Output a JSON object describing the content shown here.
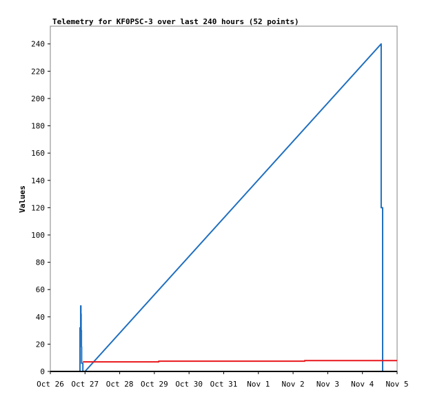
{
  "chart_data": {
    "type": "line",
    "title": "Telemetry for KF0PSC-3 over last 240 hours (52 points)",
    "xlabel": "",
    "ylabel": "Values",
    "x_ticks": [
      "Oct 26",
      "Oct 27",
      "Oct 28",
      "Oct 29",
      "Oct 30",
      "Oct 31",
      "Nov 1",
      "Nov 2",
      "Nov 3",
      "Nov 4",
      "Nov 5"
    ],
    "y_ticks": [
      0,
      20,
      40,
      60,
      80,
      100,
      120,
      140,
      160,
      180,
      200,
      220,
      240
    ],
    "xlim": [
      "2023-10-26T00:00",
      "2023-11-05T00:00"
    ],
    "ylim": [
      0,
      253
    ],
    "grid": false,
    "colors": {
      "series1": "#1f6fbf",
      "series2": "#e8161b",
      "axis": "#000000",
      "frame": "#808080"
    },
    "series": [
      {
        "color": "#1f6fbf",
        "points": [
          [
            "2023-10-26T20:30",
            0
          ],
          [
            "2023-10-26T20:30",
            32
          ],
          [
            "2023-10-26T21:00",
            32
          ],
          [
            "2023-10-26T21:00",
            48
          ],
          [
            "2023-10-26T21:10",
            48
          ],
          [
            "2023-10-26T21:10",
            42
          ],
          [
            "2023-10-26T21:20",
            42
          ],
          [
            "2023-10-26T21:20",
            30
          ],
          [
            "2023-10-26T21:30",
            30
          ],
          [
            "2023-10-26T21:30",
            18
          ],
          [
            "2023-10-26T21:40",
            18
          ],
          [
            "2023-10-26T21:40",
            6
          ],
          [
            "2023-10-26T22:30",
            6
          ],
          [
            "2023-10-26T22:30",
            0
          ],
          [
            "2023-10-27T00:00",
            0
          ],
          [
            "2023-11-04T13:00",
            240
          ],
          [
            "2023-11-04T13:00",
            120
          ],
          [
            "2023-11-04T14:00",
            120
          ],
          [
            "2023-11-04T14:00",
            0
          ],
          [
            "2023-11-05T00:00",
            0
          ]
        ]
      },
      {
        "color": "#e8161b",
        "points": [
          [
            "2023-10-26T22:30",
            7
          ],
          [
            "2023-10-29T03:00",
            7
          ],
          [
            "2023-10-29T03:00",
            7.5
          ],
          [
            "2023-11-02T08:00",
            7.5
          ],
          [
            "2023-11-02T08:00",
            8
          ],
          [
            "2023-11-05T00:00",
            8
          ]
        ]
      }
    ]
  }
}
